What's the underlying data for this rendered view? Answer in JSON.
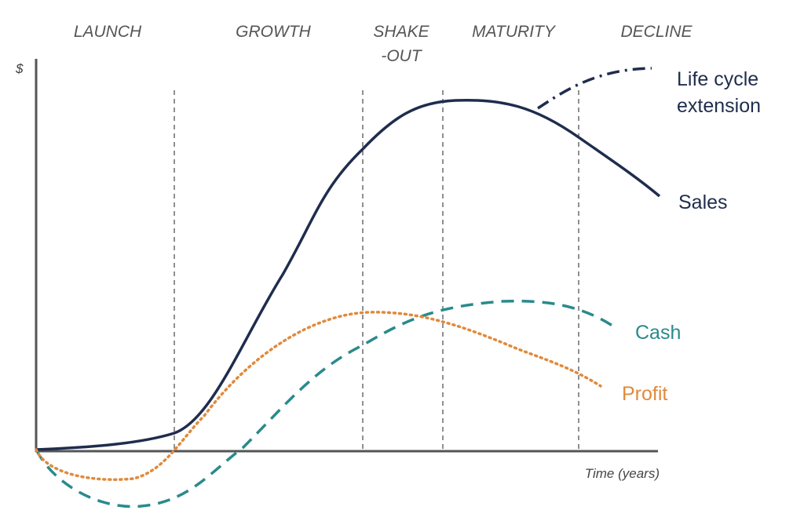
{
  "axes": {
    "y_label": "$",
    "x_label": "Time (years)"
  },
  "stages": [
    [
      "LAUNCH"
    ],
    [
      "GROWTH"
    ],
    [
      "SHAKE",
      "-OUT"
    ],
    [
      "MATURITY"
    ],
    [
      "DECLINE"
    ]
  ],
  "curves": {
    "extension": [
      "Life cycle",
      "extension"
    ],
    "sales": [
      "Sales"
    ],
    "cash": [
      "Cash"
    ],
    "profit": [
      "Profit"
    ]
  }
}
